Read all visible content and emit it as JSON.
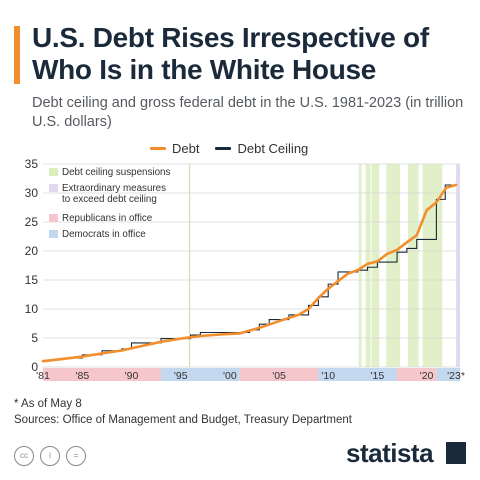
{
  "header": {
    "title": "U.S. Debt Rises Irrespective of Who Is in the White House",
    "subtitle": "Debt ceiling and gross federal debt in the U.S. 1981-2023 (in trillion U.S. dollars)"
  },
  "footer": {
    "note": "* As of May 8",
    "sources": "Sources: Office of Management and Budget, Treasury Department"
  },
  "brand": {
    "name": "statista"
  },
  "icons": [
    "cc-icon",
    "by-icon",
    "nd-icon"
  ],
  "chart_data": {
    "type": "line",
    "title": "",
    "xlabel": "",
    "ylabel": "",
    "xlim": [
      1981,
      2023.4
    ],
    "ylim": [
      0,
      35
    ],
    "yticks": [
      0,
      5,
      10,
      15,
      20,
      25,
      30,
      35
    ],
    "xticks": [
      {
        "x": 1981,
        "label": "'81"
      },
      {
        "x": 1985,
        "label": "'85"
      },
      {
        "x": 1990,
        "label": "'90"
      },
      {
        "x": 1995,
        "label": "'95"
      },
      {
        "x": 2000,
        "label": "'00"
      },
      {
        "x": 2005,
        "label": "'05"
      },
      {
        "x": 2010,
        "label": "'10"
      },
      {
        "x": 2015,
        "label": "'15"
      },
      {
        "x": 2020,
        "label": "'20"
      },
      {
        "x": 2023,
        "label": "'23*"
      }
    ],
    "grid": true,
    "legend_position": "top-center",
    "series": [
      {
        "name": "Debt",
        "color": "#f28e2b",
        "points": [
          [
            1981,
            1.0
          ],
          [
            1983,
            1.4
          ],
          [
            1985,
            1.8
          ],
          [
            1987,
            2.35
          ],
          [
            1989,
            2.85
          ],
          [
            1991,
            3.6
          ],
          [
            1993,
            4.35
          ],
          [
            1995,
            4.9
          ],
          [
            1997,
            5.35
          ],
          [
            1999,
            5.6
          ],
          [
            2001,
            5.8
          ],
          [
            2003,
            6.75
          ],
          [
            2005,
            7.9
          ],
          [
            2007,
            9.0
          ],
          [
            2008,
            10.0
          ],
          [
            2009,
            11.9
          ],
          [
            2010,
            13.5
          ],
          [
            2011,
            14.8
          ],
          [
            2012,
            16.1
          ],
          [
            2013,
            16.7
          ],
          [
            2014,
            17.8
          ],
          [
            2015,
            18.2
          ],
          [
            2016,
            19.5
          ],
          [
            2017,
            20.2
          ],
          [
            2018,
            21.5
          ],
          [
            2019,
            22.7
          ],
          [
            2020,
            27.0
          ],
          [
            2021,
            28.4
          ],
          [
            2022,
            30.9
          ],
          [
            2023,
            31.4
          ]
        ]
      },
      {
        "name": "Debt Ceiling",
        "color": "#1b2a3a",
        "step": true,
        "points": [
          [
            1981,
            1.08
          ],
          [
            1982,
            1.29
          ],
          [
            1983,
            1.49
          ],
          [
            1984,
            1.57
          ],
          [
            1985,
            2.08
          ],
          [
            1986,
            2.11
          ],
          [
            1987,
            2.8
          ],
          [
            1989,
            3.12
          ],
          [
            1990,
            4.15
          ],
          [
            1993,
            4.9
          ],
          [
            1996,
            5.5
          ],
          [
            1997,
            5.95
          ],
          [
            2002,
            6.4
          ],
          [
            2003,
            7.38
          ],
          [
            2004,
            8.18
          ],
          [
            2006,
            8.97
          ],
          [
            2008,
            10.62
          ],
          [
            2009,
            12.1
          ],
          [
            2010,
            14.29
          ],
          [
            2011,
            16.39
          ],
          [
            2013,
            16.7
          ],
          [
            2014,
            17.2
          ],
          [
            2015,
            18.1
          ],
          [
            2017,
            19.8
          ],
          [
            2018,
            20.45
          ],
          [
            2019,
            22.0
          ],
          [
            2021,
            28.9
          ],
          [
            2021.9,
            31.38
          ],
          [
            2023,
            31.38
          ]
        ]
      }
    ],
    "legend_entries": [
      {
        "label": "Debt ceiling suspensions",
        "color": "#dcedbe"
      },
      {
        "label": "Extraordinary measures to exceed debt ceiling",
        "color": "#e2d9ef"
      },
      {
        "label": "Republicans in office",
        "color": "#f5c6cc"
      },
      {
        "label": "Democrats in office",
        "color": "#c3d8ee"
      }
    ],
    "suspensions": [
      [
        2013.1,
        2013.4
      ],
      [
        2013.8,
        2014.3
      ],
      [
        2014.4,
        2015.2
      ],
      [
        2015.9,
        2017.3
      ],
      [
        2018.1,
        2019.2
      ],
      [
        2019.6,
        2021.6
      ]
    ],
    "extraordinary_measures": [
      [
        2023.0,
        2023.4
      ]
    ],
    "annotation_lines": [
      1995.9
    ],
    "administrations": [
      {
        "party": "Republicans",
        "start": 1981,
        "end": 1993
      },
      {
        "party": "Democrats",
        "start": 1993,
        "end": 2001
      },
      {
        "party": "Republicans",
        "start": 2001,
        "end": 2009
      },
      {
        "party": "Democrats",
        "start": 2009,
        "end": 2017
      },
      {
        "party": "Republicans",
        "start": 2017,
        "end": 2021
      },
      {
        "party": "Democrats",
        "start": 2021,
        "end": 2023.4
      }
    ]
  }
}
